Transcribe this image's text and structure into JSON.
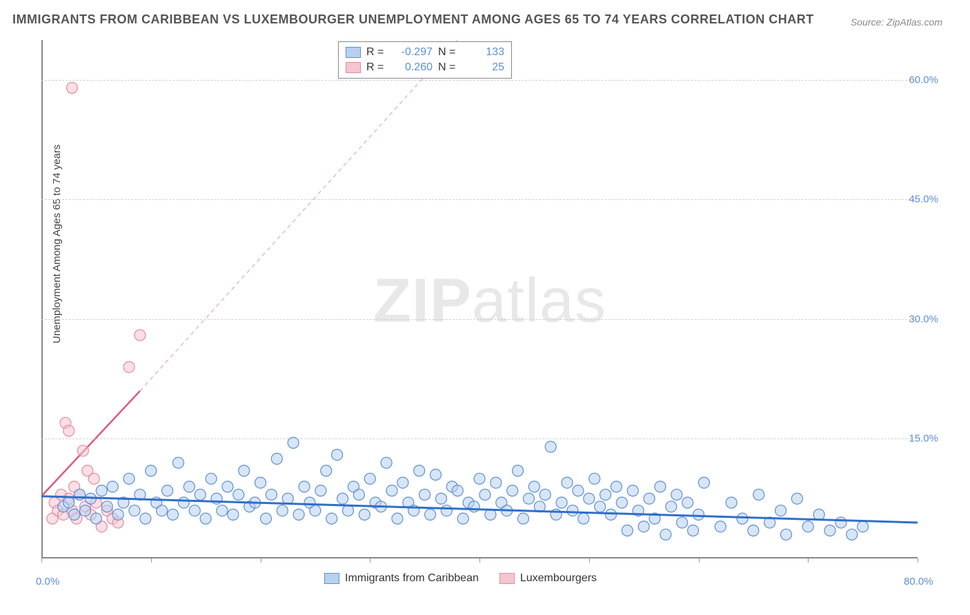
{
  "title": "IMMIGRANTS FROM CARIBBEAN VS LUXEMBOURGER UNEMPLOYMENT AMONG AGES 65 TO 74 YEARS CORRELATION CHART",
  "source": "Source: ZipAtlas.com",
  "y_axis_label": "Unemployment Among Ages 65 to 74 years",
  "watermark": {
    "bold": "ZIP",
    "light": "atlas"
  },
  "chart": {
    "type": "scatter",
    "xlim": [
      0,
      80
    ],
    "ylim": [
      0,
      65
    ],
    "x_ticks": [
      0,
      10,
      20,
      30,
      40,
      50,
      60,
      70,
      80
    ],
    "x_tick_labels": {
      "0": "0.0%",
      "80": "80.0%"
    },
    "y_ticks": [
      15,
      30,
      45,
      60
    ],
    "y_tick_labels": {
      "15": "15.0%",
      "30": "30.0%",
      "45": "45.0%",
      "60": "60.0%"
    },
    "grid_color": "#d8d8d8",
    "background": "#ffffff",
    "marker_radius": 8,
    "marker_stroke_width": 1.2,
    "series": [
      {
        "name": "Immigrants from Caribbean",
        "fill": "#b8d0f0",
        "stroke": "#5b8fd6",
        "fill_opacity": 0.55,
        "correlation": {
          "R": "-0.297",
          "N": "133"
        },
        "trend": {
          "x1": 0,
          "y1": 7.8,
          "x2": 80,
          "y2": 4.5,
          "color": "#2f6fc9",
          "width": 3,
          "dash": "none"
        },
        "points": [
          [
            2,
            6.5
          ],
          [
            2.5,
            7
          ],
          [
            3,
            5.5
          ],
          [
            3.5,
            8
          ],
          [
            4,
            6
          ],
          [
            4.5,
            7.5
          ],
          [
            5,
            5
          ],
          [
            5.5,
            8.5
          ],
          [
            6,
            6.5
          ],
          [
            6.5,
            9
          ],
          [
            7,
            5.5
          ],
          [
            7.5,
            7
          ],
          [
            8,
            10
          ],
          [
            8.5,
            6
          ],
          [
            9,
            8
          ],
          [
            9.5,
            5
          ],
          [
            10,
            11
          ],
          [
            10.5,
            7
          ],
          [
            11,
            6
          ],
          [
            11.5,
            8.5
          ],
          [
            12,
            5.5
          ],
          [
            12.5,
            12
          ],
          [
            13,
            7
          ],
          [
            13.5,
            9
          ],
          [
            14,
            6
          ],
          [
            14.5,
            8
          ],
          [
            15,
            5
          ],
          [
            15.5,
            10
          ],
          [
            16,
            7.5
          ],
          [
            16.5,
            6
          ],
          [
            17,
            9
          ],
          [
            17.5,
            5.5
          ],
          [
            18,
            8
          ],
          [
            18.5,
            11
          ],
          [
            19,
            6.5
          ],
          [
            19.5,
            7
          ],
          [
            20,
            9.5
          ],
          [
            20.5,
            5
          ],
          [
            21,
            8
          ],
          [
            21.5,
            12.5
          ],
          [
            22,
            6
          ],
          [
            22.5,
            7.5
          ],
          [
            23,
            14.5
          ],
          [
            23.5,
            5.5
          ],
          [
            24,
            9
          ],
          [
            24.5,
            7
          ],
          [
            25,
            6
          ],
          [
            25.5,
            8.5
          ],
          [
            26,
            11
          ],
          [
            26.5,
            5
          ],
          [
            27,
            13
          ],
          [
            27.5,
            7.5
          ],
          [
            28,
            6
          ],
          [
            28.5,
            9
          ],
          [
            29,
            8
          ],
          [
            29.5,
            5.5
          ],
          [
            30,
            10
          ],
          [
            30.5,
            7
          ],
          [
            31,
            6.5
          ],
          [
            31.5,
            12
          ],
          [
            32,
            8.5
          ],
          [
            32.5,
            5
          ],
          [
            33,
            9.5
          ],
          [
            33.5,
            7
          ],
          [
            34,
            6
          ],
          [
            34.5,
            11
          ],
          [
            35,
            8
          ],
          [
            35.5,
            5.5
          ],
          [
            36,
            10.5
          ],
          [
            36.5,
            7.5
          ],
          [
            37,
            6
          ],
          [
            37.5,
            9
          ],
          [
            38,
            8.5
          ],
          [
            38.5,
            5
          ],
          [
            39,
            7
          ],
          [
            39.5,
            6.5
          ],
          [
            40,
            10
          ],
          [
            40.5,
            8
          ],
          [
            41,
            5.5
          ],
          [
            41.5,
            9.5
          ],
          [
            42,
            7
          ],
          [
            42.5,
            6
          ],
          [
            43,
            8.5
          ],
          [
            43.5,
            11
          ],
          [
            44,
            5
          ],
          [
            44.5,
            7.5
          ],
          [
            45,
            9
          ],
          [
            45.5,
            6.5
          ],
          [
            46,
            8
          ],
          [
            46.5,
            14
          ],
          [
            47,
            5.5
          ],
          [
            47.5,
            7
          ],
          [
            48,
            9.5
          ],
          [
            48.5,
            6
          ],
          [
            49,
            8.5
          ],
          [
            49.5,
            5
          ],
          [
            50,
            7.5
          ],
          [
            50.5,
            10
          ],
          [
            51,
            6.5
          ],
          [
            51.5,
            8
          ],
          [
            52,
            5.5
          ],
          [
            52.5,
            9
          ],
          [
            53,
            7
          ],
          [
            53.5,
            3.5
          ],
          [
            54,
            8.5
          ],
          [
            54.5,
            6
          ],
          [
            55,
            4
          ],
          [
            55.5,
            7.5
          ],
          [
            56,
            5
          ],
          [
            56.5,
            9
          ],
          [
            57,
            3
          ],
          [
            57.5,
            6.5
          ],
          [
            58,
            8
          ],
          [
            58.5,
            4.5
          ],
          [
            59,
            7
          ],
          [
            59.5,
            3.5
          ],
          [
            60,
            5.5
          ],
          [
            60.5,
            9.5
          ],
          [
            62,
            4
          ],
          [
            63,
            7
          ],
          [
            64,
            5
          ],
          [
            65,
            3.5
          ],
          [
            65.5,
            8
          ],
          [
            66.5,
            4.5
          ],
          [
            67.5,
            6
          ],
          [
            68,
            3
          ],
          [
            69,
            7.5
          ],
          [
            70,
            4
          ],
          [
            71,
            5.5
          ],
          [
            72,
            3.5
          ],
          [
            73,
            4.5
          ],
          [
            74,
            3
          ],
          [
            75,
            4
          ]
        ]
      },
      {
        "name": "Luxembourgers",
        "fill": "#f5c5d0",
        "stroke": "#e08ba0",
        "fill_opacity": 0.55,
        "correlation": {
          "R": "0.260",
          "N": "25"
        },
        "trend_solid": {
          "x1": 0,
          "y1": 7.8,
          "x2": 9,
          "y2": 21,
          "color": "#e05580",
          "width": 2.5
        },
        "trend_dash": {
          "x1": 9,
          "y1": 21,
          "x2": 38,
          "y2": 65,
          "color": "#e8a8b8",
          "width": 1.2,
          "dash": "6,5"
        },
        "points": [
          [
            1,
            5
          ],
          [
            1.2,
            7
          ],
          [
            1.5,
            6
          ],
          [
            1.8,
            8
          ],
          [
            2,
            5.5
          ],
          [
            2.2,
            17
          ],
          [
            2.5,
            16
          ],
          [
            2.5,
            7.5
          ],
          [
            2.8,
            6
          ],
          [
            3,
            9
          ],
          [
            3.2,
            5
          ],
          [
            3.5,
            8
          ],
          [
            3.8,
            13.5
          ],
          [
            4,
            6.5
          ],
          [
            4.2,
            11
          ],
          [
            4.5,
            5.5
          ],
          [
            4.8,
            10
          ],
          [
            5,
            7
          ],
          [
            5.5,
            4
          ],
          [
            6,
            6
          ],
          [
            6.5,
            5
          ],
          [
            7,
            4.5
          ],
          [
            8,
            24
          ],
          [
            9,
            28
          ],
          [
            2.8,
            59
          ]
        ]
      }
    ]
  },
  "legend_bottom": [
    {
      "label": "Immigrants from Caribbean",
      "fill": "#b8d0f0",
      "stroke": "#5b8fd6"
    },
    {
      "label": "Luxembourgers",
      "fill": "#f5c5d0",
      "stroke": "#e08ba0"
    }
  ]
}
